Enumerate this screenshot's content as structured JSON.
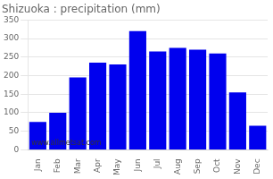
{
  "chart_data": {
    "type": "bar",
    "title": "Shizuoka : precipitation (mm)",
    "categories": [
      "Jan",
      "Feb",
      "Mar",
      "Apr",
      "May",
      "Jun",
      "Jul",
      "Aug",
      "Sep",
      "Oct",
      "Nov",
      "Dec"
    ],
    "values": [
      75,
      100,
      195,
      235,
      230,
      320,
      265,
      275,
      270,
      260,
      155,
      65
    ],
    "color": "#0000ee",
    "ylim": [
      0,
      350
    ],
    "yticks": [
      0,
      50,
      100,
      150,
      200,
      250,
      300,
      350
    ],
    "grid": true,
    "annotations": [
      "www.allmetsat.com"
    ]
  }
}
